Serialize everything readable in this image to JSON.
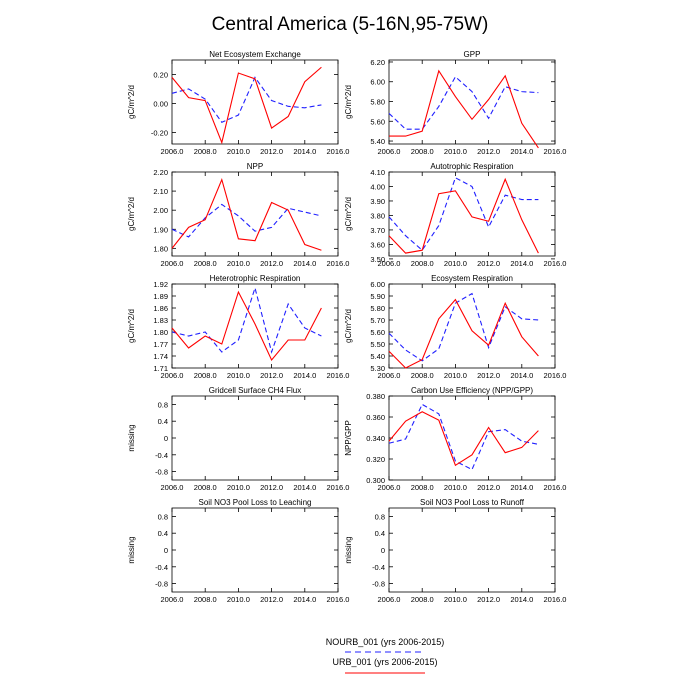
{
  "page_title": "Central America (5-16N,95-75W)",
  "colors": {
    "series_nourb": "#2020ff",
    "series_urb": "#ff0000",
    "axis": "#000000",
    "background": "#ffffff"
  },
  "legend": {
    "entries": [
      {
        "label": "NOURB_001 (yrs 2006-2015)",
        "series": "nourb",
        "style": "dashed"
      },
      {
        "label": "URB_001 (yrs 2006-2015)",
        "series": "urb",
        "style": "solid"
      }
    ]
  },
  "chart_data": [
    {
      "type": "line",
      "title": "Net Ecosystem Exchange",
      "ylabel": "gC/m^2/d",
      "xlim": [
        2006,
        2016
      ],
      "ylim": [
        -0.28,
        0.3
      ],
      "xticks": [
        "2006.0",
        "2008.0",
        "2010.0",
        "2012.0",
        "2014.0",
        "2016.0"
      ],
      "yticks": [
        -0.2,
        0.0,
        0.2
      ],
      "ytick_labels": [
        "-0.20",
        "0.00",
        "0.20"
      ],
      "x": [
        2006,
        2007,
        2008,
        2009,
        2010,
        2011,
        2012,
        2013,
        2014,
        2015
      ],
      "series": [
        {
          "name": "NOURB_001",
          "values": [
            0.07,
            0.1,
            0.03,
            -0.13,
            -0.08,
            0.18,
            0.02,
            -0.02,
            -0.03,
            -0.01
          ]
        },
        {
          "name": "URB_001",
          "values": [
            0.18,
            0.04,
            0.02,
            -0.27,
            0.21,
            0.17,
            -0.17,
            -0.09,
            0.15,
            0.25
          ]
        }
      ]
    },
    {
      "type": "line",
      "title": "GPP",
      "ylabel": "gC/m^2/d",
      "xlim": [
        2006,
        2016
      ],
      "ylim": [
        5.37,
        6.22
      ],
      "xticks": [
        "2006.0",
        "2008.0",
        "2010.0",
        "2012.0",
        "2014.0",
        "2016.0"
      ],
      "yticks": [
        5.4,
        5.6,
        5.8,
        6.0,
        6.2
      ],
      "ytick_labels": [
        "5.40",
        "5.60",
        "5.80",
        "6.00",
        "6.20"
      ],
      "x": [
        2006,
        2007,
        2008,
        2009,
        2010,
        2011,
        2012,
        2013,
        2014,
        2015
      ],
      "series": [
        {
          "name": "NOURB_001",
          "values": [
            5.68,
            5.52,
            5.52,
            5.75,
            6.05,
            5.9,
            5.63,
            5.95,
            5.9,
            5.89
          ]
        },
        {
          "name": "URB_001",
          "values": [
            5.45,
            5.45,
            5.5,
            6.11,
            5.85,
            5.62,
            5.82,
            6.06,
            5.58,
            5.33
          ]
        }
      ]
    },
    {
      "type": "line",
      "title": "NPP",
      "ylabel": "gC/m^2/d",
      "xlim": [
        2006,
        2016
      ],
      "ylim": [
        1.76,
        2.2
      ],
      "xticks": [
        "2006.0",
        "2008.0",
        "2010.0",
        "2012.0",
        "2014.0",
        "2016.0"
      ],
      "yticks": [
        1.8,
        1.9,
        2.0,
        2.1,
        2.2
      ],
      "ytick_labels": [
        "1.80",
        "1.90",
        "2.00",
        "2.10",
        "2.20"
      ],
      "x": [
        2006,
        2007,
        2008,
        2009,
        2010,
        2011,
        2012,
        2013,
        2014,
        2015
      ],
      "series": [
        {
          "name": "NOURB_001",
          "values": [
            1.9,
            1.86,
            1.96,
            2.03,
            1.97,
            1.89,
            1.91,
            2.01,
            1.99,
            1.97
          ]
        },
        {
          "name": "URB_001",
          "values": [
            1.8,
            1.91,
            1.95,
            2.16,
            1.85,
            1.84,
            2.04,
            2.0,
            1.82,
            1.79
          ]
        }
      ]
    },
    {
      "type": "line",
      "title": "Autotrophic Respiration",
      "ylabel": "gC/m^2/d",
      "xlim": [
        2006,
        2016
      ],
      "ylim": [
        3.52,
        4.1
      ],
      "xticks": [
        "2006.0",
        "2008.0",
        "2010.0",
        "2012.0",
        "2014.0",
        "2016.0"
      ],
      "yticks": [
        3.5,
        3.6,
        3.7,
        3.8,
        3.9,
        4.0,
        4.1
      ],
      "ytick_labels": [
        "3.50",
        "3.60",
        "3.70",
        "3.80",
        "3.90",
        "4.00",
        "4.10"
      ],
      "x": [
        2006,
        2007,
        2008,
        2009,
        2010,
        2011,
        2012,
        2013,
        2014,
        2015
      ],
      "series": [
        {
          "name": "NOURB_001",
          "values": [
            3.79,
            3.66,
            3.56,
            3.73,
            4.06,
            4.0,
            3.72,
            3.94,
            3.91,
            3.91
          ]
        },
        {
          "name": "URB_001",
          "values": [
            3.66,
            3.54,
            3.56,
            3.95,
            3.97,
            3.79,
            3.76,
            4.05,
            3.77,
            3.54
          ]
        }
      ]
    },
    {
      "type": "line",
      "title": "Heterotrophic Respiration",
      "ylabel": "gC/m^2/d",
      "xlim": [
        2006,
        2016
      ],
      "ylim": [
        1.71,
        1.92
      ],
      "xticks": [
        "2006.0",
        "2008.0",
        "2010.0",
        "2012.0",
        "2014.0",
        "2016.0"
      ],
      "yticks": [
        1.71,
        1.74,
        1.77,
        1.8,
        1.83,
        1.86,
        1.89,
        1.92
      ],
      "ytick_labels": [
        "1.71",
        "1.74",
        "1.77",
        "1.80",
        "1.83",
        "1.86",
        "1.89",
        "1.92"
      ],
      "x": [
        2006,
        2007,
        2008,
        2009,
        2010,
        2011,
        2012,
        2013,
        2014,
        2015
      ],
      "series": [
        {
          "name": "NOURB_001",
          "values": [
            1.8,
            1.79,
            1.8,
            1.75,
            1.78,
            1.91,
            1.75,
            1.87,
            1.81,
            1.79
          ]
        },
        {
          "name": "URB_001",
          "values": [
            1.81,
            1.76,
            1.79,
            1.77,
            1.9,
            1.82,
            1.73,
            1.78,
            1.78,
            1.86
          ]
        }
      ]
    },
    {
      "type": "line",
      "title": "Ecosystem Respiration",
      "ylabel": "gC/m^2/d",
      "xlim": [
        2006,
        2016
      ],
      "ylim": [
        5.3,
        6.0
      ],
      "xticks": [
        "2006.0",
        "2008.0",
        "2010.0",
        "2012.0",
        "2014.0",
        "2016.0"
      ],
      "yticks": [
        5.3,
        5.4,
        5.5,
        5.6,
        5.7,
        5.8,
        5.9,
        6.0
      ],
      "ytick_labels": [
        "5.30",
        "5.40",
        "5.50",
        "5.60",
        "5.70",
        "5.80",
        "5.90",
        "6.00"
      ],
      "x": [
        2006,
        2007,
        2008,
        2009,
        2010,
        2011,
        2012,
        2013,
        2014,
        2015
      ],
      "series": [
        {
          "name": "NOURB_001",
          "values": [
            5.59,
            5.45,
            5.36,
            5.46,
            5.84,
            5.92,
            5.47,
            5.81,
            5.71,
            5.7
          ]
        },
        {
          "name": "URB_001",
          "values": [
            5.44,
            5.3,
            5.37,
            5.71,
            5.87,
            5.61,
            5.49,
            5.84,
            5.56,
            5.4
          ]
        }
      ]
    },
    {
      "type": "line",
      "title": "Gridcell Surface CH4 Flux",
      "ylabel": "missing",
      "xlim": [
        2006,
        2016
      ],
      "ylim": [
        -1.0,
        1.0
      ],
      "xticks": [
        "2006.0",
        "2008.0",
        "2010.0",
        "2012.0",
        "2014.0",
        "2016.0"
      ],
      "yticks": [
        -0.8,
        -0.4,
        0,
        0.4,
        0.8
      ],
      "ytick_labels": [
        "-0.8",
        "-0.4",
        "0",
        "0.4",
        "0.8"
      ],
      "x": [],
      "series": []
    },
    {
      "type": "line",
      "title": "Carbon Use Efficiency (NPP/GPP)",
      "ylabel": "NPP/GPP",
      "xlim": [
        2006,
        2016
      ],
      "ylim": [
        0.3,
        0.38
      ],
      "xticks": [
        "2006.0",
        "2008.0",
        "2010.0",
        "2012.0",
        "2014.0",
        "2016.0"
      ],
      "yticks": [
        0.3,
        0.32,
        0.34,
        0.36,
        0.38
      ],
      "ytick_labels": [
        "0.300",
        "0.320",
        "0.340",
        "0.360",
        "0.380"
      ],
      "x": [
        2006,
        2007,
        2008,
        2009,
        2010,
        2011,
        2012,
        2013,
        2014,
        2015
      ],
      "series": [
        {
          "name": "NOURB_001",
          "values": [
            0.335,
            0.339,
            0.372,
            0.363,
            0.318,
            0.31,
            0.346,
            0.348,
            0.337,
            0.334
          ]
        },
        {
          "name": "URB_001",
          "values": [
            0.337,
            0.356,
            0.365,
            0.357,
            0.314,
            0.324,
            0.35,
            0.326,
            0.331,
            0.347
          ]
        }
      ]
    },
    {
      "type": "line",
      "title": "Soil NO3 Pool Loss to Leaching",
      "ylabel": "missing",
      "xlim": [
        2006,
        2016
      ],
      "ylim": [
        -1.0,
        1.0
      ],
      "xticks": [
        "2006.0",
        "2008.0",
        "2010.0",
        "2012.0",
        "2014.0",
        "2016.0"
      ],
      "yticks": [
        -0.8,
        -0.4,
        0,
        0.4,
        0.8
      ],
      "ytick_labels": [
        "-0.8",
        "-0.4",
        "0",
        "0.4",
        "0.8"
      ],
      "x": [],
      "series": []
    },
    {
      "type": "line",
      "title": "Soil NO3 Pool Loss to Runoff",
      "ylabel": "missing",
      "xlim": [
        2006,
        2016
      ],
      "ylim": [
        -1.0,
        1.0
      ],
      "xticks": [
        "2006.0",
        "2008.0",
        "2010.0",
        "2012.0",
        "2014.0",
        "2016.0"
      ],
      "yticks": [
        -0.8,
        -0.4,
        0,
        0.4,
        0.8
      ],
      "ytick_labels": [
        "-0.8",
        "-0.4",
        "0",
        "0.4",
        "0.8"
      ],
      "x": [],
      "series": []
    }
  ]
}
